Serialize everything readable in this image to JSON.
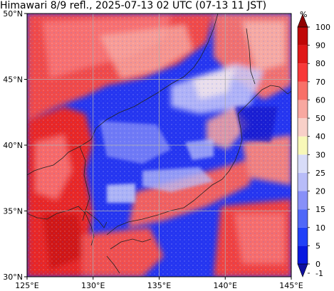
{
  "title": "Himawari 8/9 refl., 2025-07-13 02 UTC (07-13 11 JST)",
  "map": {
    "lon_range": [
      125,
      145
    ],
    "lat_range": [
      30,
      50
    ],
    "lon_ticks": [
      {
        "value": 125,
        "label": "125°E"
      },
      {
        "value": 130,
        "label": "130°E"
      },
      {
        "value": 135,
        "label": "135°E"
      },
      {
        "value": 140,
        "label": "140°E"
      },
      {
        "value": 145,
        "label": "145°E"
      }
    ],
    "lat_ticks": [
      {
        "value": 30,
        "label": "30°N"
      },
      {
        "value": 35,
        "label": "35°N"
      },
      {
        "value": 40,
        "label": "40°N"
      },
      {
        "value": 45,
        "label": "45°N"
      },
      {
        "value": 50,
        "label": "50°N"
      }
    ],
    "grid": true
  },
  "colorbar": {
    "unit": "%",
    "levels": [
      -1,
      0,
      5,
      10,
      15,
      20,
      25,
      30,
      40,
      50,
      60,
      70,
      80,
      90,
      100
    ],
    "colors": [
      "#1010a0",
      "#0818e0",
      "#2040f8",
      "#5068f8",
      "#8890f8",
      "#b8bcf8",
      "#d8dcf8",
      "#f8f8b8",
      "#f8d0c8",
      "#f8a8a0",
      "#f87068",
      "#f83838",
      "#e01818",
      "#c00808",
      "#900000"
    ],
    "extend_min": true,
    "extend_max": true
  }
}
